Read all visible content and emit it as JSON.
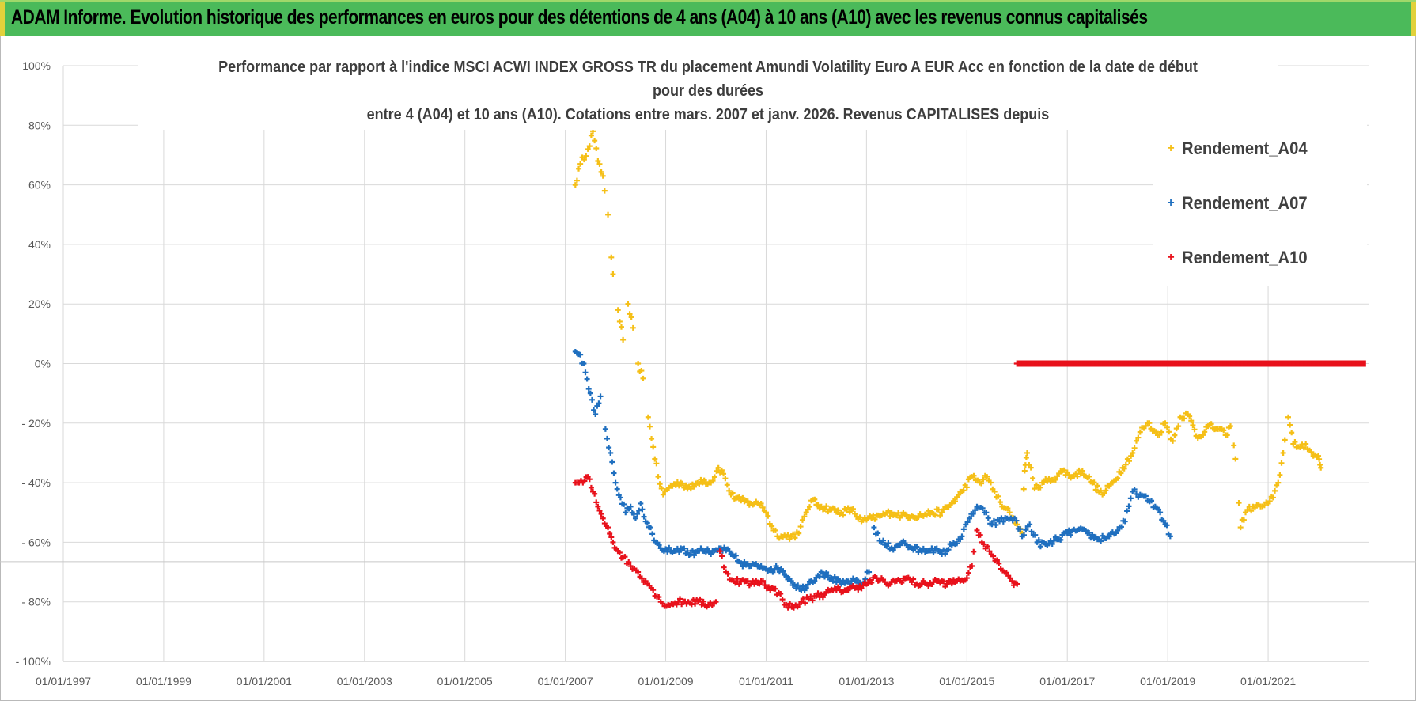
{
  "header": {
    "title": "ADAM Informe. Evolution historique des performances en euros pour des détentions de 4 ans (A04) à 10 ans (A10) avec les revenus connus capitalisés"
  },
  "colors": {
    "header_bg": "#4bba5a",
    "accent": "#e1d13b",
    "series_A04": "#f5bf16",
    "series_A07": "#1f6fbf",
    "series_A10": "#e8111b"
  },
  "chart_data": {
    "type": "scatter",
    "title_lines": [
      "Performance par rapport à l'indice MSCI ACWI INDEX GROSS TR  du placement Amundi Volatility Euro A EUR Acc en fonction de la date de début",
      "pour des durées",
      "entre 4 (A04) et 10 ans (A10). Cotations entre mars. 2007 et janv. 2026. Revenus CAPITALISES depuis"
    ],
    "xlabel": "",
    "ylabel": "",
    "xlim": [
      1997.0,
      2023.0
    ],
    "ylim": [
      -100,
      100
    ],
    "x_ticks": [
      {
        "value": 1997,
        "label": "01/01/1997"
      },
      {
        "value": 1999,
        "label": "01/01/1999"
      },
      {
        "value": 2001,
        "label": "01/01/2001"
      },
      {
        "value": 2003,
        "label": "01/01/2003"
      },
      {
        "value": 2005,
        "label": "01/01/2005"
      },
      {
        "value": 2007,
        "label": "01/01/2007"
      },
      {
        "value": 2009,
        "label": "01/01/2009"
      },
      {
        "value": 2011,
        "label": "01/01/2011"
      },
      {
        "value": 2013,
        "label": "01/01/2013"
      },
      {
        "value": 2015,
        "label": "01/01/2015"
      },
      {
        "value": 2017,
        "label": "01/01/2017"
      },
      {
        "value": 2019,
        "label": "01/01/2019"
      },
      {
        "value": 2021,
        "label": "01/01/2021"
      }
    ],
    "y_ticks": [
      {
        "value": 100,
        "label": "100%"
      },
      {
        "value": 80,
        "label": "80%"
      },
      {
        "value": 60,
        "label": "60%"
      },
      {
        "value": 40,
        "label": "40%"
      },
      {
        "value": 20,
        "label": "20%"
      },
      {
        "value": 0,
        "label": "0%"
      },
      {
        "value": -20,
        "label": "- 20%"
      },
      {
        "value": -40,
        "label": "- 40%"
      },
      {
        "value": -60,
        "label": "- 60%"
      },
      {
        "value": -80,
        "label": "- 80%"
      },
      {
        "value": -100,
        "label": "- 100%"
      }
    ],
    "grid": true,
    "legend_position": "top-right",
    "series": [
      {
        "name": "Rendement_A04",
        "color": "#f5bf16",
        "points": [
          [
            2007.2,
            60
          ],
          [
            2007.3,
            67
          ],
          [
            2007.45,
            72
          ],
          [
            2007.55,
            78
          ],
          [
            2007.65,
            68
          ],
          [
            2007.75,
            63
          ],
          [
            2007.85,
            50
          ],
          [
            2007.95,
            30
          ],
          [
            2008.05,
            18
          ],
          [
            2008.15,
            8
          ],
          [
            2008.25,
            20
          ],
          [
            2008.35,
            12
          ],
          [
            2008.45,
            0
          ],
          [
            2008.55,
            -5
          ],
          [
            2008.65,
            -18
          ],
          [
            2008.75,
            -28
          ],
          [
            2008.85,
            -38
          ],
          [
            2008.95,
            -44
          ],
          [
            2009.1,
            -41
          ],
          [
            2009.3,
            -40
          ],
          [
            2009.5,
            -42
          ],
          [
            2009.7,
            -39
          ],
          [
            2009.9,
            -40
          ],
          [
            2010.05,
            -35
          ],
          [
            2010.15,
            -37
          ],
          [
            2010.3,
            -44
          ],
          [
            2010.5,
            -46
          ],
          [
            2010.7,
            -47
          ],
          [
            2010.9,
            -47
          ],
          [
            2011.0,
            -50
          ],
          [
            2011.15,
            -56
          ],
          [
            2011.3,
            -58
          ],
          [
            2011.5,
            -58
          ],
          [
            2011.65,
            -57
          ],
          [
            2011.8,
            -50
          ],
          [
            2011.9,
            -46
          ],
          [
            2012.1,
            -48
          ],
          [
            2012.3,
            -49
          ],
          [
            2012.5,
            -50
          ],
          [
            2012.7,
            -49
          ],
          [
            2012.9,
            -53
          ],
          [
            2013.1,
            -52
          ],
          [
            2013.3,
            -51
          ],
          [
            2013.5,
            -50
          ],
          [
            2013.7,
            -51
          ],
          [
            2013.9,
            -51
          ],
          [
            2014.1,
            -51
          ],
          [
            2014.3,
            -50
          ],
          [
            2014.5,
            -50
          ],
          [
            2014.7,
            -47
          ],
          [
            2014.9,
            -43
          ],
          [
            2015.1,
            -38
          ],
          [
            2015.25,
            -40
          ],
          [
            2015.4,
            -38
          ],
          [
            2015.55,
            -43
          ],
          [
            2015.7,
            -48
          ],
          [
            2015.85,
            -50
          ],
          [
            2016.0,
            -54
          ],
          [
            2016.1,
            -57
          ],
          [
            2016.15,
            -36
          ],
          [
            2016.2,
            -30
          ],
          [
            2016.35,
            -42
          ],
          [
            2016.5,
            -40
          ],
          [
            2016.7,
            -39
          ],
          [
            2016.9,
            -36
          ],
          [
            2017.1,
            -38
          ],
          [
            2017.3,
            -36
          ],
          [
            2017.5,
            -40
          ],
          [
            2017.7,
            -44
          ],
          [
            2017.9,
            -40
          ],
          [
            2018.1,
            -35
          ],
          [
            2018.3,
            -30
          ],
          [
            2018.45,
            -23
          ],
          [
            2018.6,
            -20
          ],
          [
            2018.8,
            -24
          ],
          [
            2018.95,
            -20
          ],
          [
            2019.1,
            -26
          ],
          [
            2019.25,
            -18
          ],
          [
            2019.4,
            -17
          ],
          [
            2019.6,
            -25
          ],
          [
            2019.8,
            -21
          ],
          [
            2020.0,
            -22
          ],
          [
            2020.15,
            -24
          ],
          [
            2020.25,
            -21
          ],
          [
            2020.35,
            -32
          ],
          [
            2020.45,
            -55
          ],
          [
            2020.55,
            -50
          ],
          [
            2020.7,
            -48
          ],
          [
            2020.85,
            -48
          ],
          [
            2021.0,
            -47
          ],
          [
            2021.1,
            -45
          ],
          [
            2021.2,
            -40
          ],
          [
            2021.3,
            -30
          ],
          [
            2021.4,
            -18
          ],
          [
            2021.5,
            -27
          ],
          [
            2021.6,
            -28
          ],
          [
            2021.75,
            -27
          ],
          [
            2021.9,
            -31
          ],
          [
            2022.0,
            -31
          ],
          [
            2022.05,
            -35
          ]
        ]
      },
      {
        "name": "Rendement_A07",
        "color": "#1f6fbf",
        "points": [
          [
            2007.2,
            4
          ],
          [
            2007.3,
            3
          ],
          [
            2007.4,
            -3
          ],
          [
            2007.5,
            -10
          ],
          [
            2007.6,
            -17
          ],
          [
            2007.7,
            -11
          ],
          [
            2007.8,
            -22
          ],
          [
            2007.9,
            -30
          ],
          [
            2008.0,
            -40
          ],
          [
            2008.1,
            -45
          ],
          [
            2008.2,
            -50
          ],
          [
            2008.3,
            -48
          ],
          [
            2008.4,
            -52
          ],
          [
            2008.5,
            -47
          ],
          [
            2008.6,
            -53
          ],
          [
            2008.7,
            -55
          ],
          [
            2008.8,
            -60
          ],
          [
            2008.9,
            -62
          ],
          [
            2009.1,
            -63
          ],
          [
            2009.3,
            -62
          ],
          [
            2009.5,
            -64
          ],
          [
            2009.7,
            -62
          ],
          [
            2009.9,
            -64
          ],
          [
            2010.1,
            -62
          ],
          [
            2010.3,
            -64
          ],
          [
            2010.5,
            -67
          ],
          [
            2010.7,
            -68
          ],
          [
            2010.9,
            -68
          ],
          [
            2011.1,
            -69
          ],
          [
            2011.3,
            -69
          ],
          [
            2011.5,
            -73
          ],
          [
            2011.7,
            -76
          ],
          [
            2011.9,
            -73
          ],
          [
            2012.1,
            -70
          ],
          [
            2012.3,
            -72
          ],
          [
            2012.5,
            -74
          ],
          [
            2012.7,
            -73
          ],
          [
            2012.9,
            -74
          ],
          [
            2013.05,
            -70
          ],
          [
            2013.15,
            -55
          ],
          [
            2013.3,
            -60
          ],
          [
            2013.5,
            -62
          ],
          [
            2013.7,
            -60
          ],
          [
            2013.9,
            -62
          ],
          [
            2014.1,
            -63
          ],
          [
            2014.3,
            -62
          ],
          [
            2014.5,
            -64
          ],
          [
            2014.7,
            -61
          ],
          [
            2014.9,
            -58
          ],
          [
            2015.05,
            -52
          ],
          [
            2015.2,
            -48
          ],
          [
            2015.35,
            -50
          ],
          [
            2015.5,
            -54
          ],
          [
            2015.65,
            -53
          ],
          [
            2015.8,
            -52
          ],
          [
            2015.95,
            -52
          ],
          [
            2016.1,
            -58
          ],
          [
            2016.25,
            -54
          ],
          [
            2016.4,
            -60
          ],
          [
            2016.6,
            -61
          ],
          [
            2016.8,
            -59
          ],
          [
            2017.0,
            -57
          ],
          [
            2017.2,
            -56
          ],
          [
            2017.4,
            -57
          ],
          [
            2017.6,
            -59
          ],
          [
            2017.8,
            -58
          ],
          [
            2018.0,
            -56
          ],
          [
            2018.15,
            -53
          ],
          [
            2018.3,
            -43
          ],
          [
            2018.45,
            -44
          ],
          [
            2018.6,
            -46
          ],
          [
            2018.75,
            -48
          ],
          [
            2018.85,
            -50
          ],
          [
            2018.95,
            -54
          ],
          [
            2019.05,
            -58
          ]
        ]
      },
      {
        "name": "Rendement_A10",
        "color": "#e8111b",
        "points": [
          [
            2007.2,
            -40
          ],
          [
            2007.35,
            -40
          ],
          [
            2007.45,
            -38
          ],
          [
            2007.55,
            -43
          ],
          [
            2007.65,
            -48
          ],
          [
            2007.75,
            -52
          ],
          [
            2007.85,
            -55
          ],
          [
            2007.95,
            -60
          ],
          [
            2008.05,
            -63
          ],
          [
            2008.15,
            -65
          ],
          [
            2008.3,
            -68
          ],
          [
            2008.45,
            -70
          ],
          [
            2008.6,
            -73
          ],
          [
            2008.75,
            -76
          ],
          [
            2008.9,
            -80
          ],
          [
            2009.05,
            -81
          ],
          [
            2009.25,
            -80
          ],
          [
            2009.45,
            -80
          ],
          [
            2009.65,
            -80
          ],
          [
            2009.85,
            -81
          ],
          [
            2010.0,
            -80
          ],
          [
            2010.08,
            -63
          ],
          [
            2010.2,
            -70
          ],
          [
            2010.35,
            -73
          ],
          [
            2010.5,
            -73
          ],
          [
            2010.7,
            -74
          ],
          [
            2010.9,
            -73
          ],
          [
            2011.05,
            -75
          ],
          [
            2011.25,
            -77
          ],
          [
            2011.4,
            -81
          ],
          [
            2011.55,
            -82
          ],
          [
            2011.7,
            -80
          ],
          [
            2011.85,
            -79
          ],
          [
            2012.0,
            -78
          ],
          [
            2012.2,
            -77
          ],
          [
            2012.4,
            -76
          ],
          [
            2012.6,
            -76
          ],
          [
            2012.8,
            -75
          ],
          [
            2013.0,
            -74
          ],
          [
            2013.2,
            -72
          ],
          [
            2013.4,
            -74
          ],
          [
            2013.6,
            -73
          ],
          [
            2013.8,
            -72
          ],
          [
            2014.0,
            -74
          ],
          [
            2014.2,
            -74
          ],
          [
            2014.4,
            -73
          ],
          [
            2014.6,
            -74
          ],
          [
            2014.8,
            -73
          ],
          [
            2015.0,
            -72
          ],
          [
            2015.1,
            -68
          ],
          [
            2015.2,
            -56
          ],
          [
            2015.3,
            -60
          ],
          [
            2015.45,
            -63
          ],
          [
            2015.6,
            -66
          ],
          [
            2015.75,
            -70
          ],
          [
            2015.9,
            -73
          ],
          [
            2016.0,
            -74
          ]
        ]
      },
      {
        "name": "Rendement_A10_zero_band",
        "color": "#e8111b",
        "band": true,
        "x_start": 2016.0,
        "x_end": 2022.95,
        "y": 0
      }
    ]
  },
  "legend": {
    "entries": [
      {
        "label": "Rendement_A04",
        "marker": "+"
      },
      {
        "label": "Rendement_A07",
        "marker": "+"
      },
      {
        "label": "Rendement_A10",
        "marker": "+"
      }
    ]
  }
}
